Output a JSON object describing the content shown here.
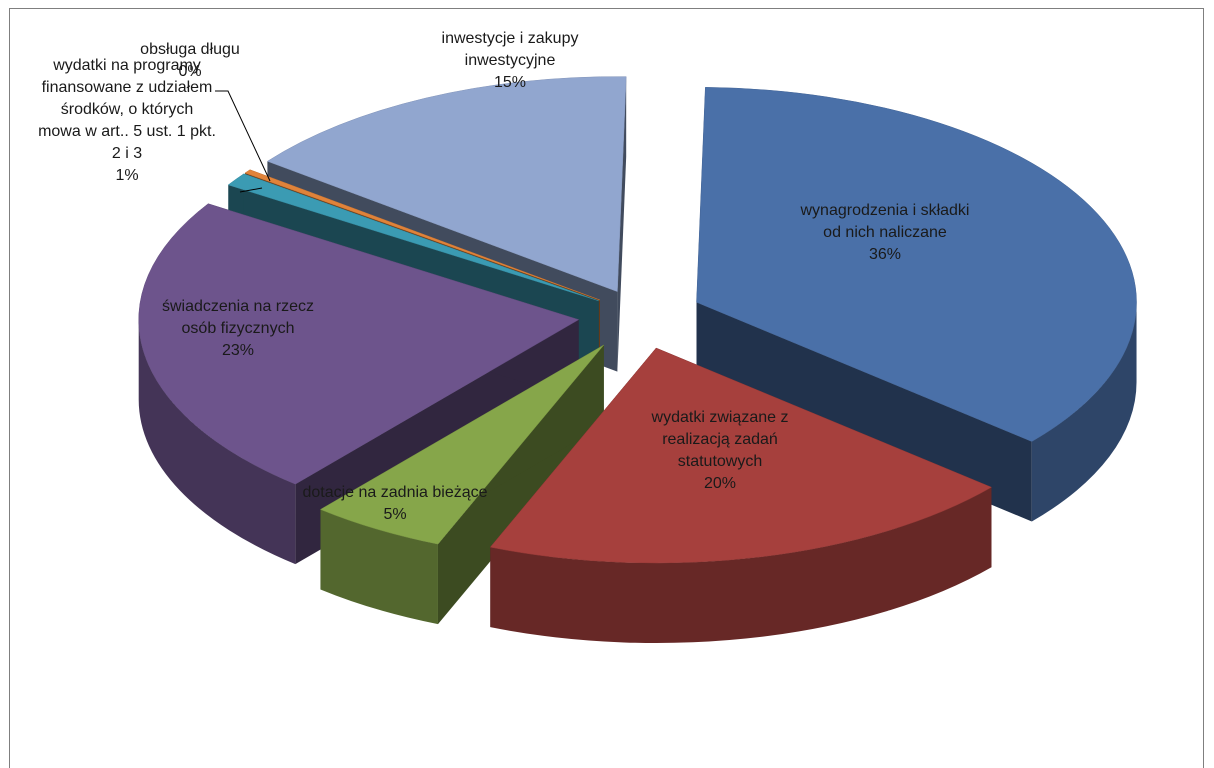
{
  "chart_data": {
    "type": "pie",
    "three_d": true,
    "exploded": true,
    "legend": "none",
    "slices": [
      {
        "label_lines": [
          "wynagrodzenia i składki",
          "od nich naliczane"
        ],
        "pct_label": "36%",
        "value": 36,
        "color": "#4a70a8"
      },
      {
        "label_lines": [
          "wydatki związane z",
          "realizacją zadań",
          "statutowych"
        ],
        "pct_label": "20%",
        "value": 20,
        "color": "#a6403d"
      },
      {
        "label_lines": [
          "dotacje na zadnia bieżące"
        ],
        "pct_label": "5%",
        "value": 5,
        "color": "#86a64a"
      },
      {
        "label_lines": [
          "świadczenia na rzecz",
          "osób fizycznych"
        ],
        "pct_label": "23%",
        "value": 23,
        "color": "#6d548c"
      },
      {
        "label_lines": [
          "wydatki na programy",
          "finansowane z udziałem",
          "środków, o których",
          "mowa w art.. 5 ust. 1 pkt.",
          "2 i 3"
        ],
        "pct_label": "1%",
        "value": 1,
        "color": "#3b9bb3"
      },
      {
        "label_lines": [
          "obsługa długu"
        ],
        "pct_label": "0%",
        "value": 0.3,
        "color": "#e0833a"
      },
      {
        "label_lines": [
          "inwestycje i zakupy",
          "inwestycyjne"
        ],
        "pct_label": "15%",
        "value": 15,
        "color": "#91a6cf"
      }
    ]
  }
}
